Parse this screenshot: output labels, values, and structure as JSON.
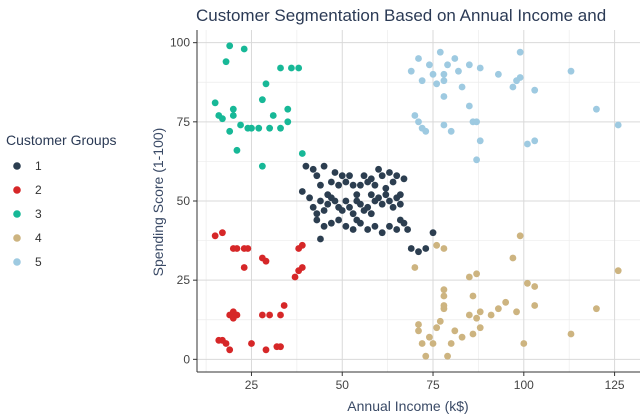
{
  "chart_data": {
    "type": "scatter",
    "title": "Customer Segmentation Based on Annual Income and",
    "xlabel": "Annual Income (k$)",
    "ylabel": "Spending Score (1-100)",
    "xlim": [
      10,
      132
    ],
    "ylim": [
      -4,
      104
    ],
    "xticks": [
      25,
      50,
      75,
      100,
      125
    ],
    "yticks": [
      0,
      25,
      50,
      75,
      100
    ],
    "grid": true,
    "legend": {
      "title": "Customer Groups",
      "position": "left",
      "entries": [
        "1",
        "2",
        "3",
        "4",
        "5"
      ]
    },
    "series": [
      {
        "name": "1",
        "color": "#2c3e50",
        "points": [
          [
            40,
            61
          ],
          [
            42,
            60
          ],
          [
            43,
            58
          ],
          [
            44,
            55
          ],
          [
            45,
            61
          ],
          [
            46,
            52
          ],
          [
            47,
            56
          ],
          [
            48,
            59
          ],
          [
            49,
            55
          ],
          [
            50,
            58
          ],
          [
            51,
            56
          ],
          [
            52,
            58
          ],
          [
            53,
            55
          ],
          [
            54,
            52
          ],
          [
            55,
            55
          ],
          [
            56,
            58
          ],
          [
            57,
            56
          ],
          [
            58,
            57
          ],
          [
            59,
            55
          ],
          [
            60,
            60
          ],
          [
            61,
            58
          ],
          [
            62,
            54
          ],
          [
            63,
            59
          ],
          [
            64,
            56
          ],
          [
            65,
            58
          ],
          [
            66,
            52
          ],
          [
            67,
            57
          ],
          [
            39,
            53
          ],
          [
            41,
            51
          ],
          [
            42,
            48
          ],
          [
            43,
            46
          ],
          [
            44,
            50
          ],
          [
            45,
            47
          ],
          [
            46,
            49
          ],
          [
            47,
            51
          ],
          [
            48,
            50
          ],
          [
            49,
            48
          ],
          [
            50,
            47
          ],
          [
            51,
            50
          ],
          [
            52,
            48
          ],
          [
            53,
            46
          ],
          [
            54,
            50
          ],
          [
            55,
            49
          ],
          [
            56,
            47
          ],
          [
            57,
            48
          ],
          [
            58,
            52
          ],
          [
            59,
            50
          ],
          [
            60,
            51
          ],
          [
            61,
            49
          ],
          [
            62,
            52
          ],
          [
            63,
            50
          ],
          [
            64,
            48
          ],
          [
            65,
            51
          ],
          [
            66,
            49
          ],
          [
            43,
            44
          ],
          [
            45,
            42
          ],
          [
            47,
            43
          ],
          [
            49,
            44
          ],
          [
            51,
            42
          ],
          [
            53,
            41
          ],
          [
            55,
            43
          ],
          [
            57,
            41
          ],
          [
            59,
            42
          ],
          [
            61,
            40
          ],
          [
            63,
            42
          ],
          [
            65,
            41
          ],
          [
            67,
            43
          ],
          [
            68,
            41
          ],
          [
            69,
            35
          ],
          [
            71,
            34
          ],
          [
            73,
            35
          ],
          [
            75,
            40
          ],
          [
            44,
            38
          ],
          [
            54,
            44
          ],
          [
            58,
            46
          ],
          [
            66,
            44
          ]
        ]
      },
      {
        "name": "2",
        "color": "#d62728",
        "points": [
          [
            15,
            39
          ],
          [
            17,
            40
          ],
          [
            17,
            6
          ],
          [
            18,
            5
          ],
          [
            19,
            3
          ],
          [
            19,
            14
          ],
          [
            20,
            15
          ],
          [
            20,
            13
          ],
          [
            20,
            35
          ],
          [
            21,
            14
          ],
          [
            23,
            35
          ],
          [
            23,
            29
          ],
          [
            24,
            35
          ],
          [
            25,
            5
          ],
          [
            28,
            32
          ],
          [
            28,
            14
          ],
          [
            29,
            31
          ],
          [
            29,
            3
          ],
          [
            30,
            14
          ],
          [
            32,
            4
          ],
          [
            33,
            4
          ],
          [
            33,
            14
          ],
          [
            34,
            17
          ],
          [
            37,
            26
          ],
          [
            38,
            28
          ],
          [
            38,
            35
          ],
          [
            39,
            36
          ],
          [
            39,
            29
          ],
          [
            16,
            6
          ],
          [
            21,
            35
          ]
        ]
      },
      {
        "name": "3",
        "color": "#17b897",
        "points": [
          [
            15,
            81
          ],
          [
            16,
            77
          ],
          [
            17,
            76
          ],
          [
            18,
            94
          ],
          [
            19,
            99
          ],
          [
            19,
            72
          ],
          [
            20,
            77
          ],
          [
            20,
            79
          ],
          [
            21,
            66
          ],
          [
            22,
            74
          ],
          [
            23,
            98
          ],
          [
            24,
            73
          ],
          [
            25,
            73
          ],
          [
            28,
            82
          ],
          [
            28,
            61
          ],
          [
            29,
            87
          ],
          [
            30,
            73
          ],
          [
            31,
            77
          ],
          [
            33,
            92
          ],
          [
            33,
            73
          ],
          [
            35,
            75
          ],
          [
            36,
            92
          ],
          [
            38,
            92
          ],
          [
            39,
            65
          ],
          [
            27,
            73
          ],
          [
            35,
            79
          ]
        ]
      },
      {
        "name": "4",
        "color": "#cdb480",
        "points": [
          [
            70,
            29
          ],
          [
            71,
            11
          ],
          [
            71,
            9
          ],
          [
            72,
            5
          ],
          [
            73,
            1
          ],
          [
            74,
            7
          ],
          [
            75,
            5
          ],
          [
            76,
            10
          ],
          [
            76,
            36
          ],
          [
            77,
            12
          ],
          [
            78,
            35
          ],
          [
            78,
            22
          ],
          [
            78,
            17
          ],
          [
            78,
            20
          ],
          [
            78,
            16
          ],
          [
            79,
            1
          ],
          [
            80,
            5
          ],
          [
            81,
            9
          ],
          [
            83,
            7
          ],
          [
            85,
            26
          ],
          [
            85,
            14
          ],
          [
            86,
            20
          ],
          [
            87,
            27
          ],
          [
            87,
            13
          ],
          [
            88,
            15
          ],
          [
            88,
            10
          ],
          [
            91,
            14
          ],
          [
            93,
            16
          ],
          [
            95,
            18
          ],
          [
            97,
            32
          ],
          [
            98,
            15
          ],
          [
            99,
            39
          ],
          [
            101,
            24
          ],
          [
            103,
            23
          ],
          [
            103,
            17
          ],
          [
            113,
            8
          ],
          [
            120,
            16
          ],
          [
            126,
            28
          ],
          [
            86,
            8
          ],
          [
            100,
            5
          ]
        ]
      },
      {
        "name": "5",
        "color": "#9ecae1",
        "points": [
          [
            69,
            91
          ],
          [
            70,
            77
          ],
          [
            71,
            95
          ],
          [
            71,
            75
          ],
          [
            72,
            73
          ],
          [
            72,
            88
          ],
          [
            73,
            72
          ],
          [
            74,
            93
          ],
          [
            75,
            90
          ],
          [
            76,
            87
          ],
          [
            77,
            97
          ],
          [
            78,
            74
          ],
          [
            78,
            90
          ],
          [
            78,
            88
          ],
          [
            78,
            83
          ],
          [
            79,
            93
          ],
          [
            81,
            95
          ],
          [
            82,
            91
          ],
          [
            83,
            86
          ],
          [
            85,
            93
          ],
          [
            86,
            75
          ],
          [
            87,
            75
          ],
          [
            87,
            63
          ],
          [
            88,
            92
          ],
          [
            88,
            69
          ],
          [
            93,
            90
          ],
          [
            97,
            86
          ],
          [
            98,
            88
          ],
          [
            99,
            97
          ],
          [
            101,
            68
          ],
          [
            103,
            85
          ],
          [
            103,
            69
          ],
          [
            113,
            91
          ],
          [
            120,
            79
          ],
          [
            126,
            74
          ],
          [
            80,
            72
          ],
          [
            85,
            80
          ],
          [
            99,
            89
          ]
        ]
      }
    ]
  }
}
